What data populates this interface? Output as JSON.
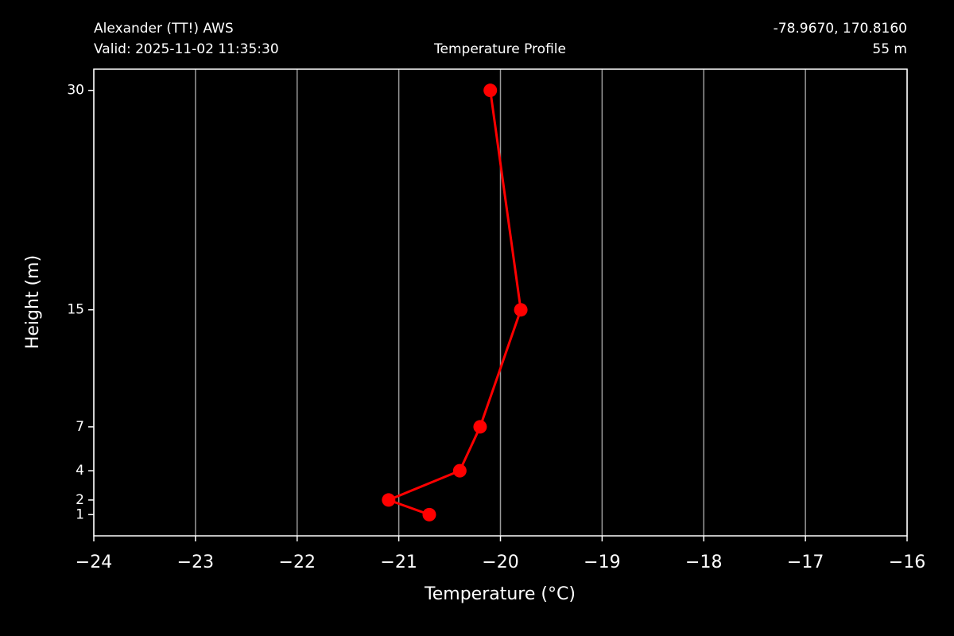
{
  "chart_data": {
    "type": "line",
    "title": "Temperature Profile",
    "station": "Alexander (TT!) AWS",
    "valid": "Valid: 2025-11-02 11:35:30",
    "coords": "-78.9670, 170.8160",
    "elevation": "55 m",
    "x_label": "Temperature (°C)",
    "y_label": "Height (m)",
    "x": [
      -20.7,
      -21.1,
      -20.4,
      -20.2,
      -19.8,
      -20.1
    ],
    "values": [
      1,
      2,
      4,
      7,
      15,
      30
    ],
    "color": "#ff0000",
    "xlim": [
      -24,
      -16
    ],
    "xticks": [
      {
        "value": -24,
        "label": "−24"
      },
      {
        "value": -23,
        "label": "−23"
      },
      {
        "value": -22,
        "label": "−22"
      },
      {
        "value": -21,
        "label": "−21"
      },
      {
        "value": -20,
        "label": "−20"
      },
      {
        "value": -19,
        "label": "−19"
      },
      {
        "value": -18,
        "label": "−18"
      },
      {
        "value": -17,
        "label": "−17"
      },
      {
        "value": -16,
        "label": "−16"
      }
    ],
    "ylim": [
      -0.45,
      31.45
    ],
    "yticks": [
      1,
      2,
      4,
      7,
      15,
      30
    ],
    "grid": "x"
  }
}
